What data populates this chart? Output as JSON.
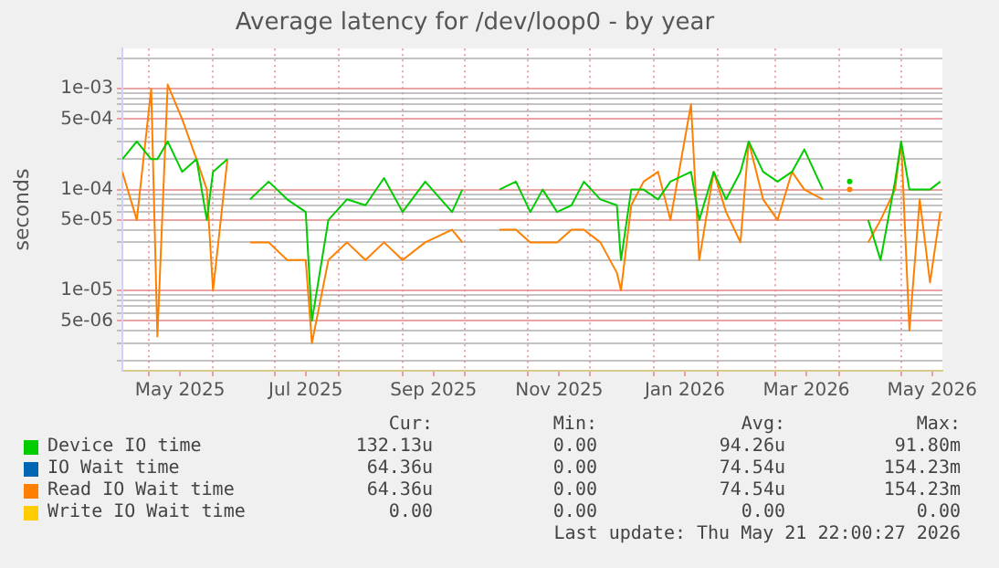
{
  "chart_data": {
    "type": "line",
    "title": "Average latency for /dev/loop0 - by year",
    "ylabel": "seconds",
    "log": "y",
    "grid": true,
    "legend": "bottom",
    "marker": "none",
    "line_style": "solid",
    "xlim": [
      "2025-04-18",
      "2026-05-21"
    ],
    "xticks": [
      {
        "value": "2025-05-01",
        "label": null
      },
      {
        "value": "2025-05-16",
        "label": "May 2025"
      },
      {
        "value": "2025-06-01",
        "label": null
      },
      {
        "value": "2025-07-01",
        "label": null
      },
      {
        "value": "2025-07-16",
        "label": "Jul 2025"
      },
      {
        "value": "2025-08-01",
        "label": null
      },
      {
        "value": "2025-09-01",
        "label": null
      },
      {
        "value": "2025-09-16",
        "label": "Sep 2025"
      },
      {
        "value": "2025-10-01",
        "label": null
      },
      {
        "value": "2025-11-01",
        "label": null
      },
      {
        "value": "2025-11-16",
        "label": "Nov 2025"
      },
      {
        "value": "2025-12-01",
        "label": null
      },
      {
        "value": "2026-01-01",
        "label": null
      },
      {
        "value": "2026-01-16",
        "label": "Jan 2026"
      },
      {
        "value": "2026-02-01",
        "label": null
      },
      {
        "value": "2026-03-01",
        "label": null
      },
      {
        "value": "2026-03-16",
        "label": "Mar 2026"
      },
      {
        "value": "2026-04-01",
        "label": null
      },
      {
        "value": "2026-05-01",
        "label": null
      },
      {
        "value": "2026-05-16",
        "label": "May 2026"
      }
    ],
    "ylim": [
      1.6e-06,
      0.0025
    ],
    "yticks": [
      {
        "value": 2e-06,
        "label": null
      },
      {
        "value": 3e-06,
        "label": null
      },
      {
        "value": 4e-06,
        "label": null
      },
      {
        "value": 5e-06,
        "label": "5e-06"
      },
      {
        "value": 6e-06,
        "label": null
      },
      {
        "value": 7e-06,
        "label": null
      },
      {
        "value": 8e-06,
        "label": null
      },
      {
        "value": 9e-06,
        "label": null
      },
      {
        "value": 1e-05,
        "label": "1e-05"
      },
      {
        "value": 2e-05,
        "label": null
      },
      {
        "value": 3e-05,
        "label": null
      },
      {
        "value": 4e-05,
        "label": null
      },
      {
        "value": 5e-05,
        "label": "5e-05"
      },
      {
        "value": 6e-05,
        "label": null
      },
      {
        "value": 7e-05,
        "label": null
      },
      {
        "value": 8e-05,
        "label": null
      },
      {
        "value": 9e-05,
        "label": null
      },
      {
        "value": 0.0001,
        "label": "1e-04"
      },
      {
        "value": 0.0002,
        "label": null
      },
      {
        "value": 0.0003,
        "label": null
      },
      {
        "value": 0.0004,
        "label": null
      },
      {
        "value": 0.0005,
        "label": "5e-04"
      },
      {
        "value": 0.0006,
        "label": null
      },
      {
        "value": 0.0007,
        "label": null
      },
      {
        "value": 0.0008,
        "label": null
      },
      {
        "value": 0.0009,
        "label": null
      },
      {
        "value": 0.001,
        "label": "1e-03"
      },
      {
        "value": 0.002,
        "label": null
      }
    ],
    "x": [
      "2025-04-18",
      "2025-04-25",
      "2025-05-02",
      "2025-05-05",
      "2025-05-10",
      "2025-05-17",
      "2025-05-24",
      "2025-05-29",
      "2025-06-01",
      "2025-06-08",
      "2025-06-13",
      "2025-06-19",
      "2025-06-28",
      "2025-07-07",
      "2025-07-16",
      "2025-07-19",
      "2025-07-27",
      "2025-08-05",
      "2025-08-14",
      "2025-08-23",
      "2025-09-01",
      "2025-09-12",
      "2025-09-25",
      "2025-09-30",
      "2025-10-11",
      "2025-10-18",
      "2025-10-26",
      "2025-11-02",
      "2025-11-08",
      "2025-11-15",
      "2025-11-22",
      "2025-11-28",
      "2025-12-06",
      "2025-12-14",
      "2025-12-16",
      "2025-12-21",
      "2025-12-27",
      "2026-01-03",
      "2026-01-09",
      "2026-01-19",
      "2026-01-23",
      "2026-01-30",
      "2026-02-05",
      "2026-02-12",
      "2026-02-16",
      "2026-02-23",
      "2026-03-02",
      "2026-03-09",
      "2026-03-15",
      "2026-03-24",
      "2026-03-26",
      "2026-04-02",
      "2026-04-06",
      "2026-04-11",
      "2026-04-15",
      "2026-04-21",
      "2026-04-28",
      "2026-05-01",
      "2026-05-05",
      "2026-05-10",
      "2026-05-15",
      "2026-05-20"
    ],
    "series": [
      {
        "name": "Device IO time",
        "color": "#00cc00",
        "values": [
          0.0002,
          0.0003,
          0.0002,
          0.0002,
          0.0003,
          0.00015,
          0.0002,
          5e-05,
          0.00015,
          0.0002,
          null,
          8e-05,
          0.00012,
          8e-05,
          6e-05,
          5e-06,
          5e-05,
          8e-05,
          7e-05,
          0.00013,
          6e-05,
          0.00012,
          6e-05,
          0.0001,
          null,
          0.0001,
          0.00012,
          6e-05,
          0.0001,
          6e-05,
          7e-05,
          0.00012,
          8e-05,
          7e-05,
          2e-05,
          0.0001,
          0.0001,
          8e-05,
          0.00012,
          0.00015,
          5e-05,
          0.00015,
          8e-05,
          0.00015,
          0.0003,
          0.00015,
          0.00012,
          0.00015,
          0.00025,
          0.0001,
          null,
          null,
          0.00012,
          null,
          5e-05,
          2e-05,
          0.00012,
          0.0003,
          0.0001,
          0.0001,
          0.0001,
          0.00012
        ]
      },
      {
        "name": "IO Wait time",
        "color": "#0066b3",
        "values": [
          null,
          null,
          null,
          null,
          null,
          null,
          null,
          null,
          null,
          null,
          null,
          null,
          null,
          null,
          null,
          null,
          null,
          null,
          null,
          null,
          null,
          null,
          null,
          null,
          null,
          null,
          null,
          null,
          null,
          null,
          null,
          null,
          null,
          null,
          null,
          null,
          null,
          null,
          null,
          null,
          null,
          null,
          null,
          null,
          null,
          null,
          null,
          null,
          null,
          null,
          null,
          null,
          null,
          null,
          null,
          null,
          null,
          null,
          null,
          null,
          null,
          null
        ]
      },
      {
        "name": "Read IO Wait time",
        "color": "#ff8000",
        "values": [
          0.00015,
          5e-05,
          0.001,
          3.5e-06,
          0.0011,
          0.0005,
          0.0002,
          0.0001,
          1e-05,
          0.0002,
          null,
          3e-05,
          3e-05,
          2e-05,
          2e-05,
          3e-06,
          2e-05,
          3e-05,
          2e-05,
          3e-05,
          2e-05,
          3e-05,
          4e-05,
          3e-05,
          null,
          4e-05,
          4e-05,
          3e-05,
          3e-05,
          3e-05,
          4e-05,
          4e-05,
          3e-05,
          1.5e-05,
          1e-05,
          7e-05,
          0.00012,
          0.00015,
          5e-05,
          0.0007,
          2e-05,
          0.00015,
          6e-05,
          3e-05,
          0.0003,
          8e-05,
          5e-05,
          0.00015,
          0.0001,
          8e-05,
          null,
          null,
          0.0001,
          null,
          3e-05,
          5e-05,
          0.0001,
          0.0003,
          4e-06,
          8e-05,
          1.2e-05,
          6e-05
        ]
      },
      {
        "name": "Write IO Wait time",
        "color": "#ffcc00",
        "values": [
          null,
          null,
          null,
          null,
          null,
          null,
          null,
          null,
          null,
          null,
          null,
          null,
          null,
          null,
          null,
          null,
          null,
          null,
          null,
          null,
          null,
          null,
          null,
          null,
          null,
          null,
          null,
          null,
          null,
          null,
          null,
          null,
          null,
          null,
          null,
          null,
          null,
          null,
          null,
          null,
          null,
          null,
          null,
          null,
          null,
          null,
          null,
          null,
          null,
          null,
          null,
          null,
          null,
          null,
          null,
          null,
          null,
          null,
          null,
          null,
          null,
          null
        ]
      }
    ],
    "annotations": [
      "Cur:",
      "Min:",
      "Avg:",
      "Max:",
      "132.13u",
      "0.00",
      "94.26u",
      "91.80m",
      "64.36u",
      "0.00",
      "74.54u",
      "154.23m",
      "64.36u",
      "0.00",
      "74.54u",
      "154.23m",
      "0.00",
      "0.00",
      "0.00",
      "0.00",
      "Last update: Thu May 21 22:00:27 2026"
    ]
  }
}
